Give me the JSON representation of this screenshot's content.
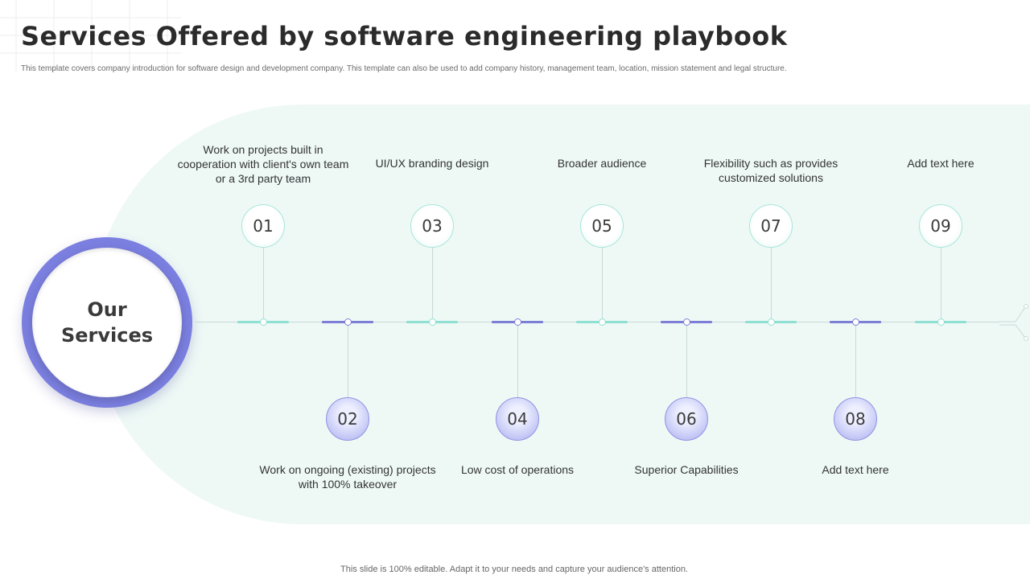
{
  "title": "Services Offered by software engineering playbook",
  "subtitle": "This template covers company introduction for software design and development company. This template can also be used to add company history, management team, location, mission statement and legal structure.",
  "hub": {
    "label": "Our Services"
  },
  "steps": [
    {
      "number": "01",
      "text": "Work on projects built in cooperation with client's own team or a 3rd party team"
    },
    {
      "number": "02",
      "text": "Work on ongoing (existing) projects with 100% takeover"
    },
    {
      "number": "03",
      "text": "UI/UX branding design"
    },
    {
      "number": "04",
      "text": "Low cost of operations"
    },
    {
      "number": "05",
      "text": "Broader audience"
    },
    {
      "number": "06",
      "text": "Superior Capabilities"
    },
    {
      "number": "07",
      "text": "Flexibility such as provides customized solutions"
    },
    {
      "number": "08",
      "text": "Add text here"
    },
    {
      "number": "09",
      "text": "Add text here"
    }
  ],
  "footer": "This slide is 100% editable. Adapt it to your needs and capture your audience's attention.",
  "colors": {
    "teal": "#8fe0d2",
    "purple": "#7d7fd6",
    "band": "#eef9f6"
  }
}
